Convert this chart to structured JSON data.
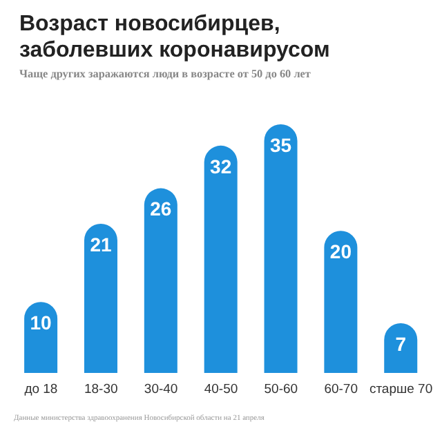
{
  "chart_data": {
    "type": "bar",
    "title": "Возраст новосибирцев, заболевших коронавирусом",
    "subtitle": "Чаще других заражаются люди в возрасте от 50 до 60 лет",
    "categories": [
      "до 18",
      "18-30",
      "30-40",
      "40-50",
      "50-60",
      "60-70",
      "старше 70"
    ],
    "values": [
      10,
      21,
      26,
      32,
      35,
      20,
      7
    ],
    "color": "#1e90dc",
    "data_labels": true,
    "annotations": [
      "Данные министерства здравоохранения Новосибирской области на 21 апреля"
    ]
  }
}
